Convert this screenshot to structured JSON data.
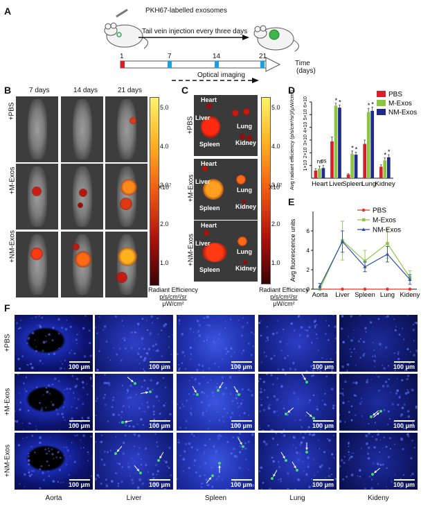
{
  "panels": {
    "A": "A",
    "B": "B",
    "C": "C",
    "D": "D",
    "E": "E",
    "F": "F"
  },
  "schematic": {
    "label_exosomes": "PKH67-labelled exosomes",
    "label_injection": "Tail vein injection every three days",
    "days": [
      "1",
      "7",
      "14",
      "21"
    ],
    "time_label": "Time",
    "time_unit": "(days)",
    "imaging_label": "Optical imaging"
  },
  "panel_b": {
    "columns": [
      "7 days",
      "14 days",
      "21 days"
    ],
    "rows": [
      "+PBS",
      "+M-Exos",
      "+NM-Exos"
    ],
    "colorbar_ticks": [
      "5.0",
      "4.0",
      "3.0",
      "2.0",
      "1.0"
    ],
    "colorbar_unit": "X10",
    "colorbar_exp": "7",
    "colorbar_title_1": "Radiant Efficiency",
    "colorbar_title_2": "p/s/cm²/sr",
    "colorbar_title_3": "μW/cm²"
  },
  "panel_c": {
    "rows": [
      "+PBS",
      "+M-Exos",
      "+NM-Exos"
    ],
    "organs": [
      "Heart",
      "Liver",
      "Lung",
      "Spleen",
      "Kidney"
    ],
    "colorbar_ticks": [
      "5.0",
      "4.0",
      "3.0",
      "2.0",
      "1.0"
    ],
    "colorbar_unit": "X10",
    "colorbar_exp": "7",
    "colorbar_title_1": "Radiant Efficiency",
    "colorbar_title_2": "p/s/cm²/sr",
    "colorbar_title_3": "μW/cm²"
  },
  "chart_data": [
    {
      "type": "bar",
      "panel": "D",
      "categories": [
        "Heart",
        "Liver",
        "Spleen",
        "Lung",
        "Kidney"
      ],
      "ylabel": "Avg radiant efficiency (p/s/cm²/sr)/(μW/cm²)",
      "ytick_labels": [
        "1×10",
        "2×10",
        "3×10",
        "4×10",
        "5×10",
        "6×10"
      ],
      "ylim": [
        0,
        6
      ],
      "annotations": [
        "ns",
        "ns",
        "*",
        "*",
        "*",
        "*",
        "*",
        "*",
        "*",
        "*",
        "*",
        "*"
      ],
      "series": [
        {
          "name": "PBS",
          "color": "#d9202a",
          "values": [
            0.6,
            2.9,
            0.3,
            2.7,
            0.9
          ],
          "errors": [
            0.15,
            0.35,
            0.05,
            0.3,
            0.15
          ]
        },
        {
          "name": "M-Exos",
          "color": "#8cc63f",
          "values": [
            0.75,
            5.7,
            1.9,
            5.2,
            1.4
          ],
          "errors": [
            0.2,
            0.2,
            0.25,
            0.3,
            0.2
          ]
        },
        {
          "name": "NM-Exos",
          "color": "#1f2a8c",
          "values": [
            0.8,
            5.55,
            1.85,
            5.3,
            1.65
          ],
          "errors": [
            0.2,
            0.2,
            0.2,
            0.3,
            0.2
          ]
        }
      ]
    },
    {
      "type": "line",
      "panel": "E",
      "categories": [
        "Aorta",
        "Liver",
        "Spleen",
        "Lung",
        "Kideny"
      ],
      "ylabel": "Avg fluorescence units",
      "yticks": [
        0,
        2,
        4,
        6
      ],
      "ylim": [
        0,
        8
      ],
      "series": [
        {
          "name": "PBS",
          "color": "#e8352b",
          "marker": "circle",
          "values": [
            0,
            0,
            0,
            0,
            0
          ],
          "errors": [
            0,
            0,
            0,
            0,
            0
          ]
        },
        {
          "name": "M-Exos",
          "color": "#8cc63f",
          "marker": "square",
          "values": [
            0,
            5.0,
            2.9,
            4.7,
            1.2
          ],
          "errors": [
            0.3,
            2.0,
            1.1,
            1.5,
            0.7
          ]
        },
        {
          "name": "NM-Exos",
          "color": "#2a4fa8",
          "marker": "triangle",
          "values": [
            0.3,
            4.9,
            2.3,
            3.6,
            1.0
          ],
          "errors": [
            0.3,
            1.1,
            0.5,
            0.8,
            0.5
          ]
        }
      ]
    }
  ],
  "panel_f": {
    "rows": [
      "+PBS",
      "+M-Exos",
      "+NM-Exos"
    ],
    "columns": [
      "Aorta",
      "Liver",
      "Spleen",
      "Lung",
      "Kideny"
    ],
    "scale_bar": "100 μm"
  }
}
